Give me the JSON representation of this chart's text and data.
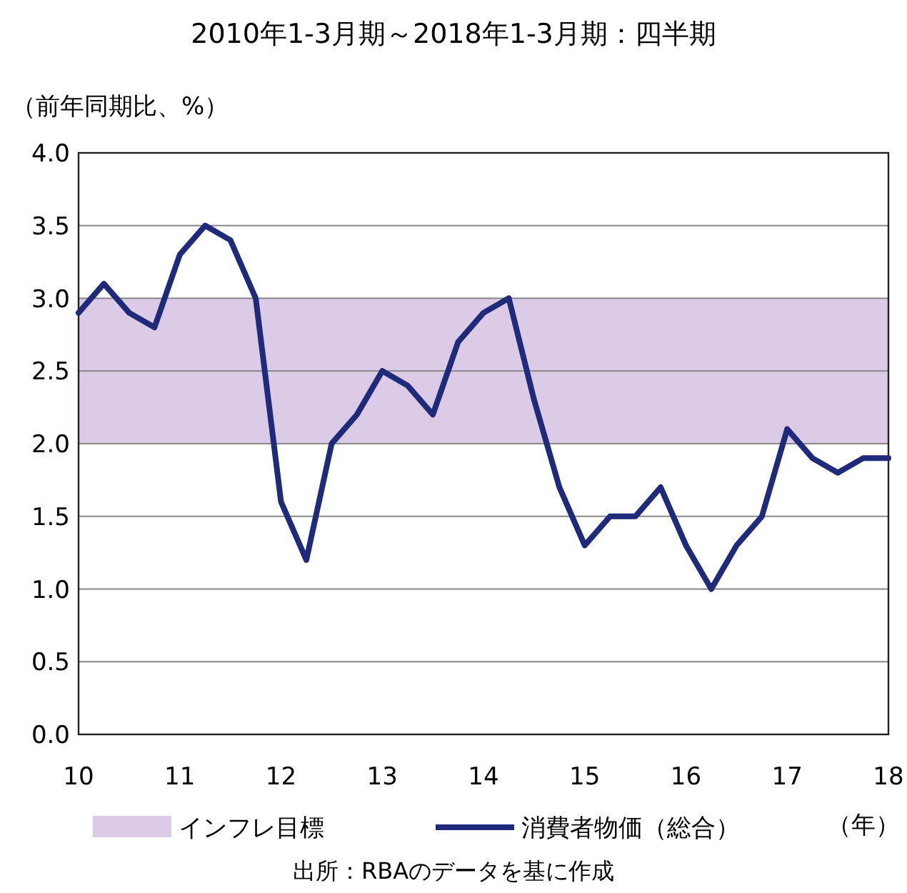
{
  "chart_data": {
    "type": "line",
    "title": "2010年1-3月期～2018年1-3月期：四半期",
    "ylabel": "（前年同期比、%）",
    "xlabel": "（年）",
    "x": [
      10,
      10.25,
      10.5,
      10.75,
      11,
      11.25,
      11.5,
      11.75,
      12,
      12.25,
      12.5,
      12.75,
      13,
      13.25,
      13.5,
      13.75,
      14,
      14.25,
      14.5,
      14.75,
      15,
      15.25,
      15.5,
      15.75,
      16,
      16.25,
      16.5,
      16.75,
      17,
      17.25,
      17.5,
      17.75,
      18
    ],
    "series": [
      {
        "name": "消費者物価（総合）",
        "color": "#1f2a7a",
        "values": [
          2.9,
          3.1,
          2.9,
          2.8,
          3.3,
          3.5,
          3.4,
          3.0,
          1.6,
          1.2,
          2.0,
          2.2,
          2.5,
          2.4,
          2.2,
          2.7,
          2.9,
          3.0,
          2.3,
          1.7,
          1.3,
          1.5,
          1.5,
          1.7,
          1.3,
          1.0,
          1.3,
          1.5,
          2.1,
          1.9,
          1.8,
          1.9,
          1.9
        ]
      }
    ],
    "xlim": [
      10,
      18
    ],
    "xticks": [
      10,
      11,
      12,
      13,
      14,
      15,
      16,
      17,
      18
    ],
    "ylim": [
      0,
      4
    ],
    "yticks": [
      {
        "value": 0,
        "label": "0.0"
      },
      {
        "value": 0.5,
        "label": "0.5"
      },
      {
        "value": 1,
        "label": "1.0"
      },
      {
        "value": 1.5,
        "label": "1.5"
      },
      {
        "value": 2,
        "label": "2.0"
      },
      {
        "value": 2.5,
        "label": "2.5"
      },
      {
        "value": 3,
        "label": "3.0"
      },
      {
        "value": 3.5,
        "label": "3.5"
      },
      {
        "value": 4,
        "label": "4.0"
      }
    ],
    "bands": [
      {
        "axis": "y",
        "from": 2,
        "to": 3,
        "label": "インフレ目標",
        "color": "#dccbe6"
      }
    ],
    "grid": "y",
    "legend": "bottom",
    "marker": "none",
    "line_style": "solid",
    "annotations": [
      "出所：RBAのデータを基に作成"
    ]
  }
}
